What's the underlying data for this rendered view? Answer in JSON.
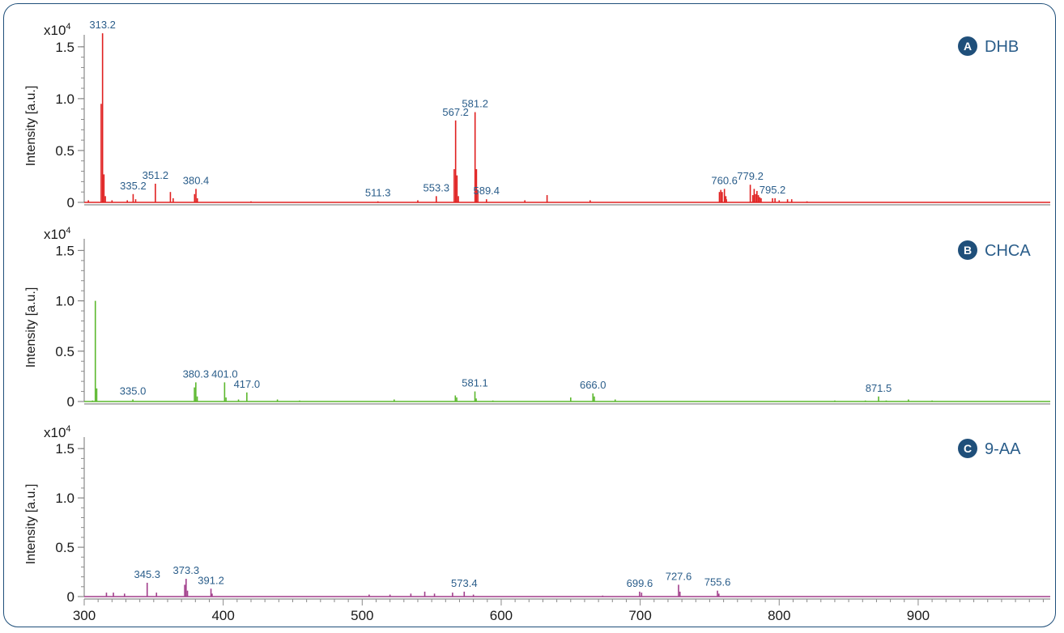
{
  "chart_data": [
    {
      "type": "line",
      "panel_letter": "A",
      "matrix": "DHB",
      "color": "#e02020",
      "ylabel": "Intensity [a.u.]",
      "y_multiplier": "x10",
      "y_exponent": "4",
      "ylim": [
        0,
        1.6
      ],
      "yticks": [
        "0",
        "0.5",
        "1.0",
        "1.5"
      ],
      "xlim": [
        300,
        995
      ],
      "peaks": [
        {
          "mz": 303,
          "i": 0.02
        },
        {
          "mz": 312.2,
          "i": 0.95
        },
        {
          "mz": 313.2,
          "i": 1.63
        },
        {
          "mz": 314.2,
          "i": 0.27
        },
        {
          "mz": 315.2,
          "i": 0.06
        },
        {
          "mz": 320,
          "i": 0.02
        },
        {
          "mz": 331,
          "i": 0.02
        },
        {
          "mz": 335.2,
          "i": 0.08
        },
        {
          "mz": 337,
          "i": 0.03
        },
        {
          "mz": 351.2,
          "i": 0.18
        },
        {
          "mz": 362,
          "i": 0.1
        },
        {
          "mz": 364,
          "i": 0.04
        },
        {
          "mz": 379.4,
          "i": 0.08
        },
        {
          "mz": 380.4,
          "i": 0.13
        },
        {
          "mz": 381.4,
          "i": 0.04
        },
        {
          "mz": 420,
          "i": 0.01
        },
        {
          "mz": 511.3,
          "i": 0.01
        },
        {
          "mz": 540,
          "i": 0.02
        },
        {
          "mz": 553.3,
          "i": 0.06
        },
        {
          "mz": 566.2,
          "i": 0.32
        },
        {
          "mz": 567.2,
          "i": 0.79
        },
        {
          "mz": 568.2,
          "i": 0.26
        },
        {
          "mz": 569.2,
          "i": 0.06
        },
        {
          "mz": 581.2,
          "i": 0.87
        },
        {
          "mz": 582.2,
          "i": 0.32
        },
        {
          "mz": 583.2,
          "i": 0.12
        },
        {
          "mz": 589.4,
          "i": 0.03
        },
        {
          "mz": 617,
          "i": 0.02
        },
        {
          "mz": 633,
          "i": 0.07
        },
        {
          "mz": 664,
          "i": 0.02
        },
        {
          "mz": 757,
          "i": 0.1
        },
        {
          "mz": 758,
          "i": 0.12
        },
        {
          "mz": 759,
          "i": 0.1
        },
        {
          "mz": 760.6,
          "i": 0.13
        },
        {
          "mz": 761.6,
          "i": 0.06
        },
        {
          "mz": 762,
          "i": 0.03
        },
        {
          "mz": 779.2,
          "i": 0.17
        },
        {
          "mz": 781,
          "i": 0.07
        },
        {
          "mz": 782,
          "i": 0.13
        },
        {
          "mz": 783,
          "i": 0.08
        },
        {
          "mz": 784,
          "i": 0.11
        },
        {
          "mz": 785,
          "i": 0.07
        },
        {
          "mz": 786,
          "i": 0.05
        },
        {
          "mz": 787,
          "i": 0.04
        },
        {
          "mz": 795.2,
          "i": 0.04
        },
        {
          "mz": 797,
          "i": 0.04
        },
        {
          "mz": 800,
          "i": 0.02
        },
        {
          "mz": 806,
          "i": 0.03
        },
        {
          "mz": 809,
          "i": 0.03
        },
        {
          "mz": 820,
          "i": 0.01
        }
      ],
      "labels": [
        {
          "text": "313.2",
          "mz": 313.2,
          "i": 1.63
        },
        {
          "text": "335.2",
          "mz": 335.2,
          "i": 0.08
        },
        {
          "text": "351.2",
          "mz": 351.2,
          "i": 0.18
        },
        {
          "text": "380.4",
          "mz": 380.4,
          "i": 0.13
        },
        {
          "text": "511.3",
          "mz": 511.3,
          "i": 0.01
        },
        {
          "text": "553.3",
          "mz": 553.3,
          "i": 0.06
        },
        {
          "text": "567.2",
          "mz": 567.2,
          "i": 0.79
        },
        {
          "text": "581.2",
          "mz": 581.2,
          "i": 0.87
        },
        {
          "text": "589.4",
          "mz": 589.4,
          "i": 0.03
        },
        {
          "text": "760.6",
          "mz": 760.6,
          "i": 0.13
        },
        {
          "text": "779.2",
          "mz": 779.2,
          "i": 0.17
        },
        {
          "text": "795.2",
          "mz": 795.2,
          "i": 0.04
        }
      ]
    },
    {
      "type": "line",
      "panel_letter": "B",
      "matrix": "CHCA",
      "color": "#5cb82e",
      "ylabel": "Intensity [a.u.]",
      "y_multiplier": "x10",
      "y_exponent": "4",
      "ylim": [
        0,
        1.6
      ],
      "yticks": [
        "0",
        "0.5",
        "1.0",
        "1.5"
      ],
      "xlim": [
        300,
        995
      ],
      "peaks": [
        {
          "mz": 306,
          "i": 0.01
        },
        {
          "mz": 308,
          "i": 1.0
        },
        {
          "mz": 309,
          "i": 0.13
        },
        {
          "mz": 335.0,
          "i": 0.02
        },
        {
          "mz": 379.3,
          "i": 0.14
        },
        {
          "mz": 380.3,
          "i": 0.19
        },
        {
          "mz": 381.3,
          "i": 0.05
        },
        {
          "mz": 401.0,
          "i": 0.19
        },
        {
          "mz": 402,
          "i": 0.04
        },
        {
          "mz": 411,
          "i": 0.02
        },
        {
          "mz": 417.0,
          "i": 0.09
        },
        {
          "mz": 439,
          "i": 0.02
        },
        {
          "mz": 455,
          "i": 0.01
        },
        {
          "mz": 523,
          "i": 0.02
        },
        {
          "mz": 567,
          "i": 0.06
        },
        {
          "mz": 568,
          "i": 0.04
        },
        {
          "mz": 581.1,
          "i": 0.1
        },
        {
          "mz": 582,
          "i": 0.03
        },
        {
          "mz": 594,
          "i": 0.01
        },
        {
          "mz": 650,
          "i": 0.04
        },
        {
          "mz": 666.0,
          "i": 0.08
        },
        {
          "mz": 667,
          "i": 0.05
        },
        {
          "mz": 682,
          "i": 0.02
        },
        {
          "mz": 840,
          "i": 0.01
        },
        {
          "mz": 862,
          "i": 0.01
        },
        {
          "mz": 871.5,
          "i": 0.05
        },
        {
          "mz": 877,
          "i": 0.01
        },
        {
          "mz": 893,
          "i": 0.02
        },
        {
          "mz": 910,
          "i": 0.01
        }
      ],
      "labels": [
        {
          "text": "335.0",
          "mz": 335.0,
          "i": 0.02
        },
        {
          "text": "380.3",
          "mz": 380.3,
          "i": 0.19
        },
        {
          "text": "401.0",
          "mz": 401.0,
          "i": 0.19
        },
        {
          "text": "417.0",
          "mz": 417.0,
          "i": 0.09
        },
        {
          "text": "581.1",
          "mz": 581.1,
          "i": 0.1
        },
        {
          "text": "666.0",
          "mz": 666.0,
          "i": 0.08
        },
        {
          "text": "871.5",
          "mz": 871.5,
          "i": 0.05
        }
      ]
    },
    {
      "type": "line",
      "panel_letter": "C",
      "matrix": "9-AA",
      "color": "#a23f8c",
      "ylabel": "Intensity [a.u.]",
      "y_multiplier": "x10",
      "y_exponent": "4",
      "ylim": [
        0,
        1.6
      ],
      "yticks": [
        "0",
        "0.5",
        "1.0",
        "1.5"
      ],
      "xlim": [
        300,
        995
      ],
      "peaks": [
        {
          "mz": 316,
          "i": 0.04
        },
        {
          "mz": 321,
          "i": 0.04
        },
        {
          "mz": 329,
          "i": 0.03
        },
        {
          "mz": 345.3,
          "i": 0.14
        },
        {
          "mz": 352,
          "i": 0.04
        },
        {
          "mz": 372.3,
          "i": 0.12
        },
        {
          "mz": 373.3,
          "i": 0.18
        },
        {
          "mz": 374.3,
          "i": 0.06
        },
        {
          "mz": 391.2,
          "i": 0.08
        },
        {
          "mz": 392,
          "i": 0.03
        },
        {
          "mz": 505,
          "i": 0.02
        },
        {
          "mz": 520,
          "i": 0.02
        },
        {
          "mz": 535,
          "i": 0.03
        },
        {
          "mz": 545,
          "i": 0.05
        },
        {
          "mz": 552,
          "i": 0.03
        },
        {
          "mz": 565,
          "i": 0.04
        },
        {
          "mz": 573.4,
          "i": 0.05
        },
        {
          "mz": 580,
          "i": 0.02
        },
        {
          "mz": 673,
          "i": 0.01
        },
        {
          "mz": 699.6,
          "i": 0.05
        },
        {
          "mz": 701,
          "i": 0.04
        },
        {
          "mz": 727.6,
          "i": 0.12
        },
        {
          "mz": 728.6,
          "i": 0.05
        },
        {
          "mz": 755.6,
          "i": 0.06
        },
        {
          "mz": 756.6,
          "i": 0.03
        }
      ],
      "labels": [
        {
          "text": "345.3",
          "mz": 345.3,
          "i": 0.14
        },
        {
          "text": "373.3",
          "mz": 373.3,
          "i": 0.18
        },
        {
          "text": "391.2",
          "mz": 391.2,
          "i": 0.08
        },
        {
          "text": "573.4",
          "mz": 573.4,
          "i": 0.05
        },
        {
          "text": "699.6",
          "mz": 699.6,
          "i": 0.05
        },
        {
          "text": "727.6",
          "mz": 727.6,
          "i": 0.12
        },
        {
          "text": "755.6",
          "mz": 755.6,
          "i": 0.06
        }
      ]
    }
  ],
  "x_axis": {
    "ticks": [
      "300",
      "400",
      "500",
      "600",
      "700",
      "800",
      "900"
    ]
  }
}
